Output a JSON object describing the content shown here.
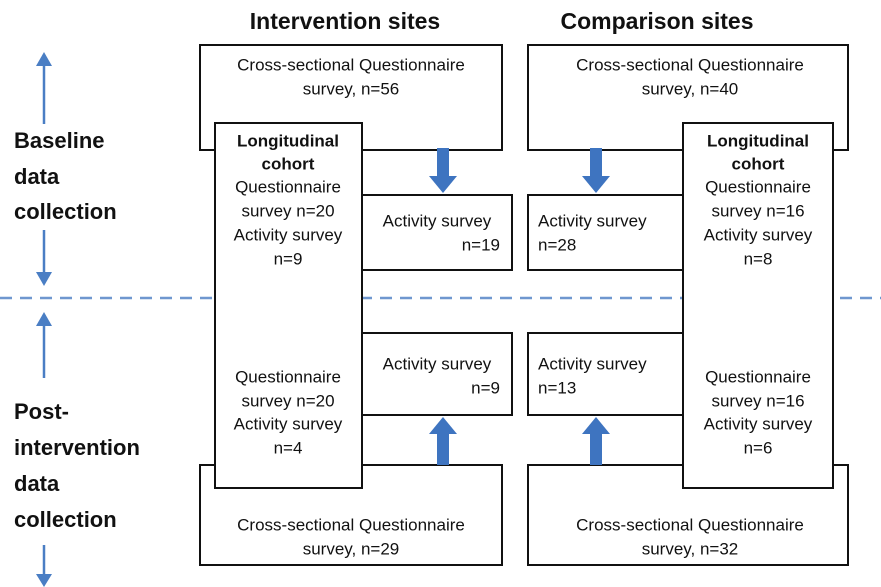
{
  "headers": {
    "intervention": "Intervention sites",
    "comparison": "Comparison sites"
  },
  "phases": {
    "baseline": [
      "Baseline",
      "data",
      "collection"
    ],
    "post": [
      "Post-",
      "intervention",
      "data",
      "collection"
    ]
  },
  "intervention": {
    "cross_sectional_baseline": [
      "Cross-sectional Questionnaire",
      "survey, n=56"
    ],
    "longitudinal_baseline": [
      "Longitudinal",
      "cohort",
      "Questionnaire",
      "survey n=20",
      "Activity survey",
      "n=9"
    ],
    "activity_baseline": [
      "Activity survey",
      "n=19"
    ],
    "longitudinal_post": [
      "Questionnaire",
      "survey n=20",
      "Activity survey",
      "n=4"
    ],
    "activity_post": [
      "Activity survey",
      "n=9"
    ],
    "cross_sectional_post": [
      "Cross-sectional Questionnaire",
      "survey, n=29"
    ]
  },
  "comparison": {
    "cross_sectional_baseline": [
      "Cross-sectional Questionnaire",
      "survey, n=40"
    ],
    "longitudinal_baseline": [
      "Longitudinal",
      "cohort",
      "Questionnaire",
      "survey n=16",
      "Activity survey",
      "n=8"
    ],
    "activity_baseline": [
      "Activity survey",
      "n=28"
    ],
    "longitudinal_post": [
      "Questionnaire",
      "survey n=16",
      "Activity survey",
      "n=6"
    ],
    "activity_post": [
      "Activity survey",
      "n=13"
    ],
    "cross_sectional_post": [
      "Cross-sectional Questionnaire",
      "survey, n=32"
    ]
  }
}
